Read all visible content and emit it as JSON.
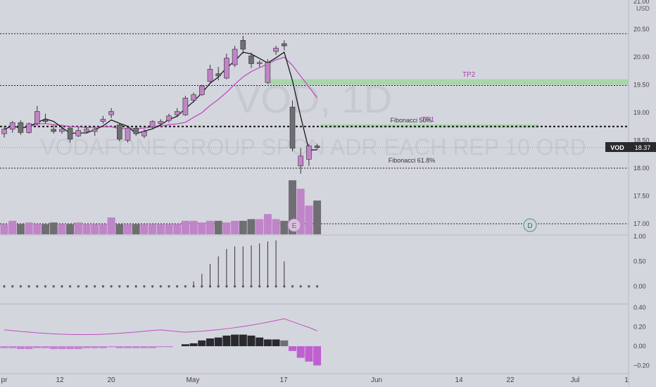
{
  "watermark": {
    "symbol": "VOD, 1D",
    "description": "VODAFONE GROUP SPON ADR EACH REP 10 ORD"
  },
  "price_axis": {
    "unit": "USD",
    "ticks": [
      "21.00",
      "20.50",
      "20.00",
      "19.50",
      "19.00",
      "18.50",
      "18.00",
      "17.50",
      "17.00"
    ]
  },
  "indicator1_axis": {
    "ticks": [
      "1.00",
      "0.50",
      "0.00"
    ]
  },
  "indicator2_axis": {
    "ticks": [
      "0.40",
      "0.20",
      "0.00",
      "−0.20"
    ]
  },
  "time_axis": {
    "ticks": [
      "pr",
      "12",
      "20",
      "May",
      "17",
      "Jun",
      "14",
      "22",
      "Jul",
      "1"
    ]
  },
  "badge": {
    "symbol": "VOD",
    "price": "18.37"
  },
  "annotations": {
    "tp2": "TP2",
    "tp1": "TP1",
    "fib50": "Fibonacci 50%",
    "fib618": "Fibonacci 61.8%",
    "earnings_marker": "E",
    "dividend_marker": "D"
  },
  "colors": {
    "up_candle": "#c084c8",
    "down_candle": "#6f6f73",
    "ma_line": "#1a1a1a",
    "ma2_line": "#c04ec0",
    "tp_zone": "#9fd59f",
    "background": "#d4d6de"
  },
  "chart_data": {
    "type": "candlestick",
    "ylim": [
      16.85,
      21.0
    ],
    "series": [
      {
        "name": "candles",
        "ohlc": [
          [
            18.62,
            18.75,
            18.55,
            18.7
          ],
          [
            18.7,
            18.85,
            18.64,
            18.82
          ],
          [
            18.82,
            18.86,
            18.6,
            18.64
          ],
          [
            18.64,
            18.82,
            18.62,
            18.8
          ],
          [
            18.8,
            19.12,
            18.76,
            19.02
          ],
          [
            18.86,
            18.98,
            18.8,
            18.84
          ],
          [
            18.7,
            18.78,
            18.62,
            18.66
          ],
          [
            18.66,
            18.76,
            18.62,
            18.7
          ],
          [
            18.72,
            18.74,
            18.46,
            18.52
          ],
          [
            18.58,
            18.74,
            18.56,
            18.68
          ],
          [
            18.66,
            18.74,
            18.62,
            18.7
          ],
          [
            18.66,
            18.74,
            18.58,
            18.7
          ],
          [
            18.84,
            18.94,
            18.8,
            18.88
          ],
          [
            18.96,
            19.08,
            18.9,
            19.02
          ],
          [
            18.78,
            18.8,
            18.48,
            18.52
          ],
          [
            18.5,
            18.74,
            18.46,
            18.72
          ],
          [
            18.72,
            18.74,
            18.58,
            18.62
          ],
          [
            18.58,
            18.7,
            18.54,
            18.66
          ],
          [
            18.74,
            18.86,
            18.7,
            18.84
          ],
          [
            18.8,
            18.88,
            18.74,
            18.84
          ],
          [
            18.86,
            18.98,
            18.82,
            18.94
          ],
          [
            18.96,
            19.08,
            18.92,
            19.02
          ],
          [
            18.96,
            19.3,
            18.94,
            19.26
          ],
          [
            19.22,
            19.36,
            19.18,
            19.32
          ],
          [
            19.32,
            19.5,
            19.3,
            19.48
          ],
          [
            19.56,
            19.86,
            19.54,
            19.78
          ],
          [
            19.7,
            19.82,
            19.58,
            19.66
          ],
          [
            19.62,
            20.06,
            19.6,
            19.98
          ],
          [
            19.86,
            20.2,
            19.82,
            20.14
          ],
          [
            20.3,
            20.38,
            20.06,
            20.14
          ],
          [
            20.02,
            20.08,
            19.8,
            19.88
          ],
          [
            19.88,
            19.94,
            19.82,
            19.9
          ],
          [
            19.54,
            19.96,
            19.52,
            19.9
          ],
          [
            20.1,
            20.2,
            20.04,
            20.16
          ],
          [
            20.24,
            20.3,
            20.12,
            20.2
          ],
          [
            19.1,
            19.22,
            18.3,
            18.36
          ],
          [
            18.04,
            18.36,
            17.9,
            18.22
          ],
          [
            18.16,
            18.44,
            18.04,
            18.4
          ],
          [
            18.4,
            18.44,
            18.34,
            18.37
          ]
        ]
      },
      {
        "name": "volume",
        "values": [
          6,
          8,
          6,
          7,
          6,
          6,
          7,
          6,
          6,
          7,
          6,
          6,
          6,
          10,
          6,
          6,
          6,
          6,
          6,
          6,
          6,
          6,
          8,
          8,
          7,
          8,
          8,
          7,
          8,
          8,
          9,
          9,
          12,
          9,
          8,
          32,
          27,
          17,
          20
        ]
      },
      {
        "name": "indicator1",
        "values": [
          0,
          0,
          0,
          0,
          0,
          0,
          0,
          0,
          0,
          0,
          0,
          0,
          0,
          0,
          0,
          0,
          0,
          0,
          0,
          0,
          0,
          0,
          0,
          0.1,
          0.25,
          0.45,
          0.6,
          0.75,
          0.8,
          0.8,
          0.82,
          0.86,
          0.9,
          0.92,
          0.5,
          0,
          0,
          0,
          0
        ]
      },
      {
        "name": "indicator2_hist",
        "values": [
          -0.02,
          -0.02,
          -0.03,
          -0.03,
          -0.02,
          -0.02,
          -0.03,
          -0.03,
          -0.03,
          -0.03,
          -0.02,
          -0.02,
          -0.02,
          -0.01,
          -0.02,
          -0.02,
          -0.02,
          -0.02,
          -0.02,
          -0.01,
          -0.01,
          0,
          0.02,
          0.03,
          0.06,
          0.08,
          0.09,
          0.11,
          0.12,
          0.12,
          0.11,
          0.09,
          0.07,
          0.07,
          0.06,
          -0.05,
          -0.12,
          -0.16,
          -0.2
        ]
      }
    ],
    "levels": {
      "tp2": 19.55,
      "fib50": 18.75,
      "fib618": 18.0,
      "resistance": 20.42,
      "low_line": 17.0
    }
  }
}
